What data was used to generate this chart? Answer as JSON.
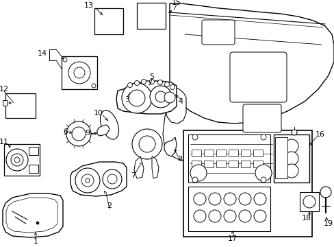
{
  "bg_color": "#ffffff",
  "line_color": "#000000",
  "fig_width": 4.89,
  "fig_height": 3.6,
  "dpi": 100,
  "label_fontsize": 8,
  "lw": 0.8
}
